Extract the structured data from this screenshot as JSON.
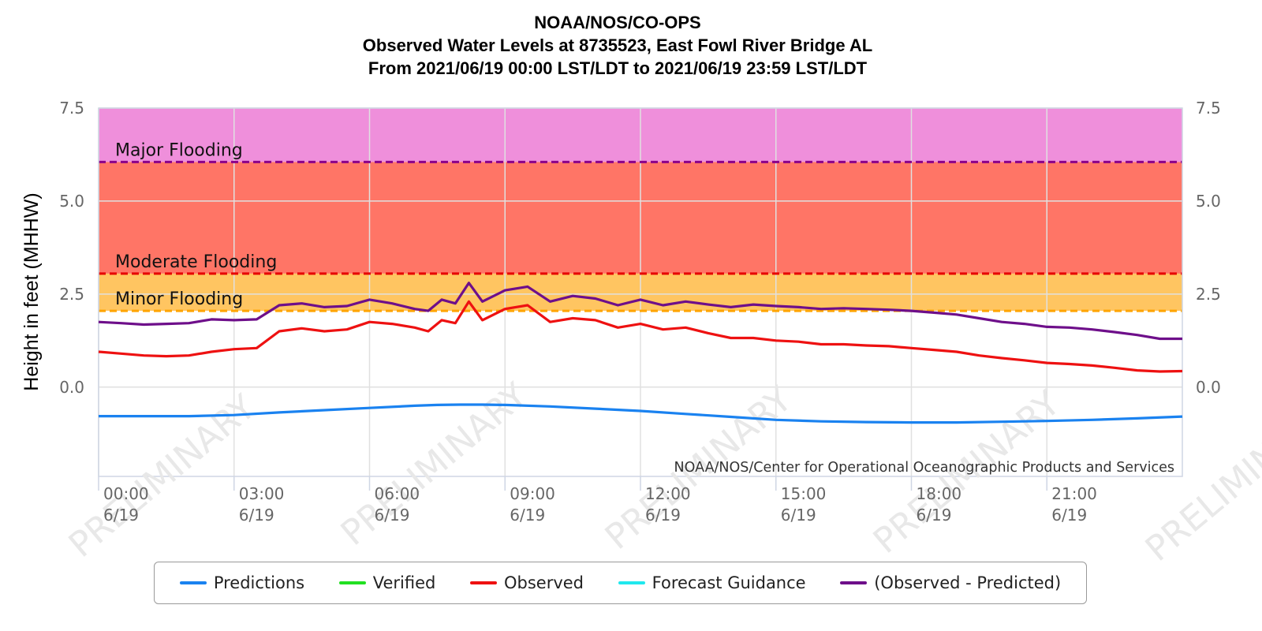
{
  "chart_data": {
    "type": "line",
    "title": [
      "NOAA/NOS/CO-OPS",
      "Observed Water Levels at 8735523, East Fowl River Bridge AL",
      "From 2021/06/19 00:00 LST/LDT to 2021/06/19 23:59 LST/LDT"
    ],
    "ylabel": "Height in feet (MHHW)",
    "xlabel": "",
    "ylim": [
      -2.4,
      7.5
    ],
    "xlim": [
      0,
      24
    ],
    "x_unit": "hours from 2021/06/19 00:00",
    "y_ticks": [
      "7.5",
      "5.0",
      "2.5",
      "0.0"
    ],
    "y_tick_values": [
      7.5,
      5.0,
      2.5,
      0.0
    ],
    "x_ticks": [
      {
        "x": 0,
        "time": "00:00",
        "date": "6/19"
      },
      {
        "x": 3,
        "time": "03:00",
        "date": "6/19"
      },
      {
        "x": 6,
        "time": "06:00",
        "date": "6/19"
      },
      {
        "x": 9,
        "time": "09:00",
        "date": "6/19"
      },
      {
        "x": 12,
        "time": "12:00",
        "date": "6/19"
      },
      {
        "x": 15,
        "time": "15:00",
        "date": "6/19"
      },
      {
        "x": 18,
        "time": "18:00",
        "date": "6/19"
      },
      {
        "x": 21,
        "time": "21:00",
        "date": "6/19"
      }
    ],
    "grid": true,
    "flood_bands": [
      {
        "name": "Major Flooding",
        "from": 6.05,
        "to": 7.5,
        "color": "#ef8fdb",
        "line_color": "#8b008b"
      },
      {
        "name": "Moderate Flooding",
        "from": 3.05,
        "to": 6.05,
        "color": "#ff7566",
        "line_color": "#e60000"
      },
      {
        "name": "Minor Flooding",
        "from": 2.05,
        "to": 3.05,
        "color": "#ffc561",
        "line_color": "#ffa500"
      }
    ],
    "watermark": "PRELIMINARY",
    "credit": "NOAA/NOS/Center for Operational Oceanographic Products and Services",
    "series": [
      {
        "name": "Predictions",
        "color": "#1a82f0",
        "x": [
          0,
          1,
          2,
          3,
          4,
          5,
          6,
          7,
          7.5,
          8,
          8.5,
          9,
          10,
          11,
          12,
          13,
          14,
          15,
          16,
          17,
          18,
          19,
          20,
          21,
          22,
          23,
          24
        ],
        "y": [
          -0.78,
          -0.78,
          -0.78,
          -0.75,
          -0.68,
          -0.62,
          -0.56,
          -0.5,
          -0.48,
          -0.47,
          -0.47,
          -0.48,
          -0.52,
          -0.58,
          -0.64,
          -0.72,
          -0.8,
          -0.88,
          -0.92,
          -0.94,
          -0.95,
          -0.95,
          -0.93,
          -0.91,
          -0.88,
          -0.84,
          -0.79
        ]
      },
      {
        "name": "Verified",
        "color": "#22e022",
        "x": [],
        "y": []
      },
      {
        "name": "Observed",
        "color": "#ee1111",
        "x": [
          0,
          0.5,
          1,
          1.5,
          2,
          2.5,
          3,
          3.5,
          4,
          4.5,
          5,
          5.5,
          6,
          6.5,
          7,
          7.3,
          7.6,
          7.9,
          8.2,
          8.5,
          9,
          9.5,
          10,
          10.5,
          11,
          11.5,
          12,
          12.5,
          13,
          13.5,
          14,
          14.5,
          15,
          15.5,
          16,
          16.5,
          17,
          17.5,
          18,
          18.5,
          19,
          19.5,
          20,
          20.5,
          21,
          21.5,
          22,
          22.5,
          23,
          23.5,
          24
        ],
        "y": [
          0.95,
          0.9,
          0.85,
          0.83,
          0.85,
          0.95,
          1.02,
          1.05,
          1.5,
          1.58,
          1.5,
          1.55,
          1.75,
          1.7,
          1.6,
          1.5,
          1.8,
          1.72,
          2.3,
          1.8,
          2.1,
          2.2,
          1.75,
          1.85,
          1.8,
          1.6,
          1.7,
          1.55,
          1.6,
          1.45,
          1.32,
          1.32,
          1.25,
          1.22,
          1.15,
          1.15,
          1.12,
          1.1,
          1.05,
          1.0,
          0.95,
          0.85,
          0.78,
          0.72,
          0.65,
          0.62,
          0.58,
          0.52,
          0.45,
          0.42,
          0.43
        ]
      },
      {
        "name": "Forecast Guidance",
        "color": "#20e8ee",
        "x": [],
        "y": []
      },
      {
        "name": "(Observed - Predicted)",
        "color": "#6e0f8a",
        "x": [
          0,
          0.5,
          1,
          1.5,
          2,
          2.5,
          3,
          3.5,
          4,
          4.5,
          5,
          5.5,
          6,
          6.5,
          7,
          7.3,
          7.6,
          7.9,
          8.2,
          8.5,
          9,
          9.5,
          10,
          10.5,
          11,
          11.5,
          12,
          12.5,
          13,
          13.5,
          14,
          14.5,
          15,
          15.5,
          16,
          16.5,
          17,
          17.5,
          18,
          18.5,
          19,
          19.5,
          20,
          20.5,
          21,
          21.5,
          22,
          22.5,
          23,
          23.5,
          24
        ],
        "y": [
          1.75,
          1.72,
          1.68,
          1.7,
          1.72,
          1.82,
          1.8,
          1.82,
          2.2,
          2.25,
          2.15,
          2.18,
          2.35,
          2.25,
          2.1,
          2.05,
          2.35,
          2.25,
          2.8,
          2.3,
          2.6,
          2.7,
          2.3,
          2.45,
          2.38,
          2.2,
          2.35,
          2.2,
          2.3,
          2.22,
          2.15,
          2.22,
          2.18,
          2.15,
          2.1,
          2.12,
          2.1,
          2.08,
          2.05,
          2.0,
          1.95,
          1.85,
          1.75,
          1.7,
          1.62,
          1.6,
          1.55,
          1.48,
          1.4,
          1.3,
          1.3
        ]
      }
    ]
  }
}
